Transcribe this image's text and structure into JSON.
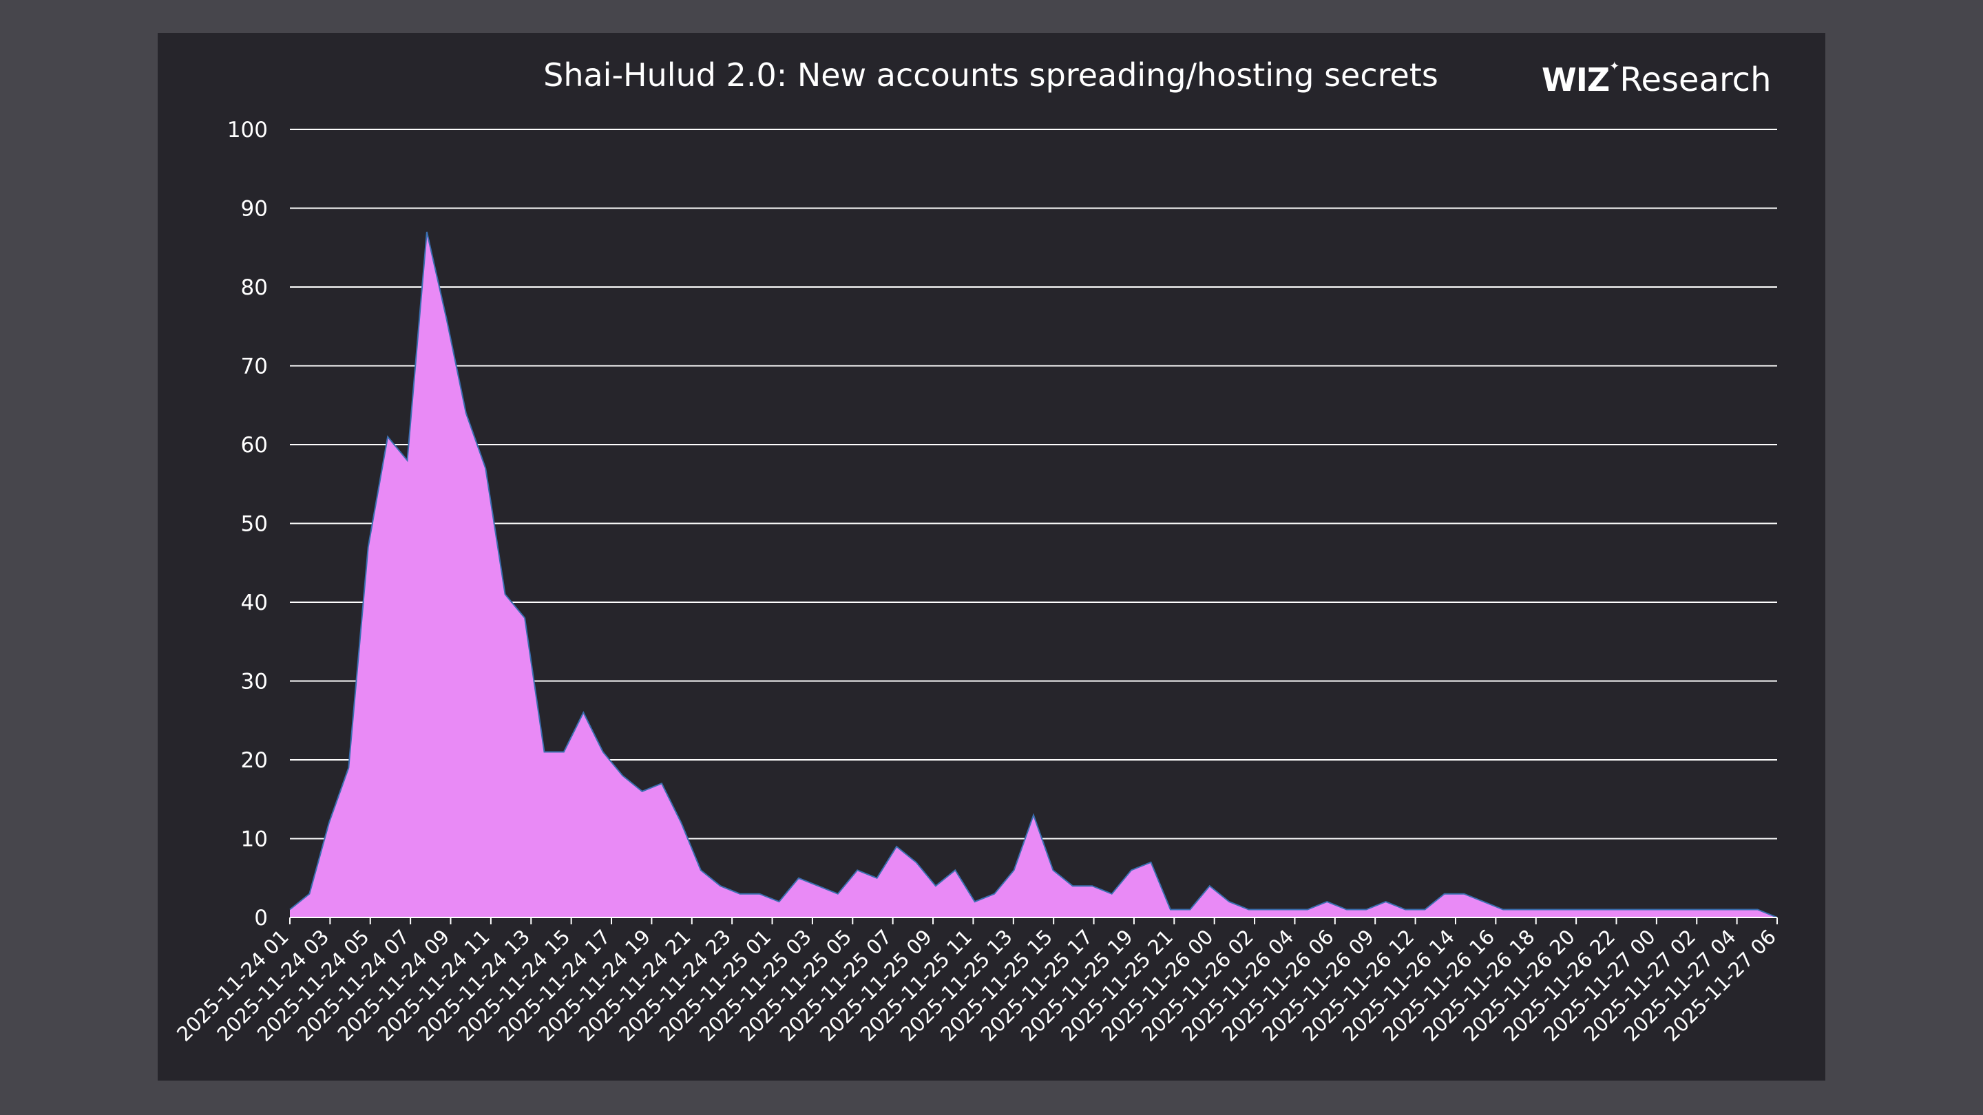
{
  "brand": {
    "logo_text": "WIZ",
    "suffix": "Research"
  },
  "colors": {
    "background": "#47464c",
    "panel": "#26252b",
    "area_fill": "#e98af6",
    "area_line": "#3a6fb0",
    "grid": "#ffffff",
    "text": "#ffffff"
  },
  "chart_data": {
    "type": "area",
    "title": "Shai-Hulud 2.0: New accounts spreading/hosting secrets",
    "xlabel": "",
    "ylabel": "",
    "ylim": [
      0,
      100
    ],
    "yticks": [
      0,
      10,
      20,
      30,
      40,
      50,
      60,
      70,
      80,
      90,
      100
    ],
    "grid": true,
    "legend": "none",
    "x_tick_labels": [
      "2025-11-24 01",
      "2025-11-24 03",
      "2025-11-24 05",
      "2025-11-24 07",
      "2025-11-24 09",
      "2025-11-24 11",
      "2025-11-24 13",
      "2025-11-24 15",
      "2025-11-24 17",
      "2025-11-24 19",
      "2025-11-24 21",
      "2025-11-24 23",
      "2025-11-25 01",
      "2025-11-25 03",
      "2025-11-25 05",
      "2025-11-25 07",
      "2025-11-25 09",
      "2025-11-25 11",
      "2025-11-25 13",
      "2025-11-25 15",
      "2025-11-25 17",
      "2025-11-25 19",
      "2025-11-25 21",
      "2025-11-26 00",
      "2025-11-26 02",
      "2025-11-26 04",
      "2025-11-26 06",
      "2025-11-26 09",
      "2025-11-26 12",
      "2025-11-26 14",
      "2025-11-26 16",
      "2025-11-26 18",
      "2025-11-26 20",
      "2025-11-26 22",
      "2025-11-27 00",
      "2025-11-27 02",
      "2025-11-27 04",
      "2025-11-27 06"
    ],
    "values": [
      1,
      3,
      12,
      19,
      47,
      61,
      58,
      87,
      76,
      64,
      57,
      41,
      38,
      21,
      21,
      26,
      21,
      18,
      16,
      17,
      12,
      6,
      4,
      3,
      3,
      2,
      5,
      4,
      3,
      6,
      5,
      9,
      7,
      4,
      6,
      2,
      3,
      6,
      13,
      6,
      4,
      4,
      3,
      6,
      7,
      1,
      1,
      4,
      2,
      1,
      1,
      1,
      1,
      2,
      1,
      1,
      2,
      1,
      1,
      3,
      3,
      2,
      1,
      1,
      1,
      1,
      1,
      1,
      1,
      1,
      1,
      1,
      1,
      1,
      1,
      1,
      0
    ]
  }
}
